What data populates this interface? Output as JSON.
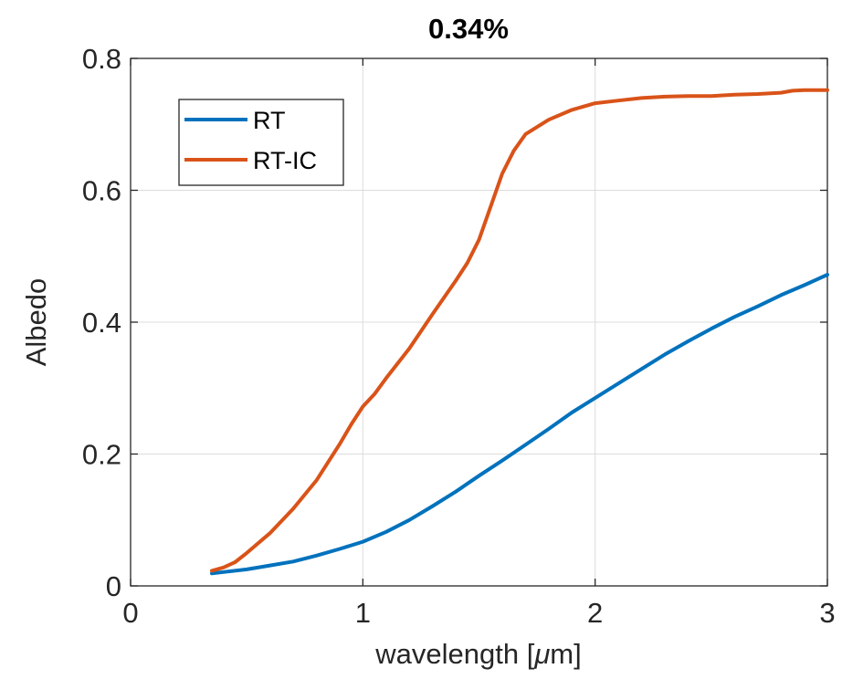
{
  "chart_data": {
    "type": "line",
    "title": "0.34%",
    "xlabel_prefix": "wavelength [",
    "xlabel_mu": "μ",
    "xlabel_suffix": "m]",
    "ylabel": "Albedo",
    "xlim": [
      0,
      3
    ],
    "ylim": [
      0,
      0.8
    ],
    "xticks": [
      0,
      1,
      2,
      3
    ],
    "xtick_labels": [
      "0",
      "1",
      "2",
      "3"
    ],
    "yticks": [
      0,
      0.2,
      0.4,
      0.6,
      0.8
    ],
    "ytick_labels": [
      "0",
      "0.2",
      "0.4",
      "0.6",
      "0.8"
    ],
    "grid": true,
    "legend_location": "top-left",
    "series": [
      {
        "name": "RT",
        "color": "#0072bd",
        "x": [
          0.35,
          0.4,
          0.5,
          0.6,
          0.7,
          0.8,
          0.9,
          1.0,
          1.1,
          1.2,
          1.3,
          1.4,
          1.5,
          1.6,
          1.7,
          1.8,
          1.9,
          2.0,
          2.1,
          2.2,
          2.3,
          2.4,
          2.5,
          2.6,
          2.7,
          2.8,
          2.9,
          3.0
        ],
        "y": [
          0.019,
          0.021,
          0.025,
          0.031,
          0.037,
          0.046,
          0.056,
          0.067,
          0.082,
          0.1,
          0.121,
          0.143,
          0.167,
          0.19,
          0.214,
          0.238,
          0.263,
          0.285,
          0.307,
          0.329,
          0.351,
          0.371,
          0.39,
          0.408,
          0.424,
          0.441,
          0.456,
          0.472
        ]
      },
      {
        "name": "RT-IC",
        "color": "#d95319",
        "x": [
          0.35,
          0.4,
          0.45,
          0.5,
          0.6,
          0.7,
          0.8,
          0.9,
          0.95,
          1.0,
          1.05,
          1.1,
          1.2,
          1.3,
          1.4,
          1.45,
          1.5,
          1.55,
          1.6,
          1.65,
          1.7,
          1.8,
          1.9,
          2.0,
          2.1,
          2.2,
          2.3,
          2.4,
          2.5,
          2.6,
          2.7,
          2.8,
          2.85,
          2.9,
          3.0
        ],
        "y": [
          0.023,
          0.028,
          0.036,
          0.05,
          0.08,
          0.117,
          0.16,
          0.215,
          0.245,
          0.272,
          0.291,
          0.315,
          0.36,
          0.412,
          0.463,
          0.49,
          0.525,
          0.575,
          0.625,
          0.66,
          0.685,
          0.707,
          0.722,
          0.732,
          0.736,
          0.74,
          0.742,
          0.743,
          0.743,
          0.745,
          0.746,
          0.748,
          0.751,
          0.752,
          0.752
        ]
      }
    ]
  }
}
